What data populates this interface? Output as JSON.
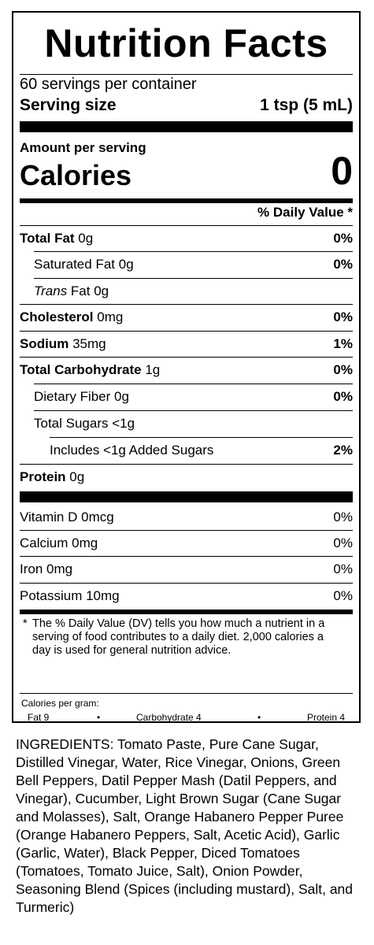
{
  "title": "Nutrition Facts",
  "servings_per_container": "60 servings per container",
  "serving_size_label": "Serving size",
  "serving_size_value": "1 tsp (5 mL)",
  "amount_per_serving": "Amount per serving",
  "calories_label": "Calories",
  "calories_value": "0",
  "daily_value_header": "% Daily Value *",
  "nutrients": [
    {
      "name": "Total Fat",
      "amount": "0g",
      "dv": "0%"
    },
    {
      "name": "Saturated Fat",
      "amount": "0g",
      "dv": "0%"
    },
    {
      "name_italic": "Trans",
      "name": "Fat",
      "amount": "0g",
      "dv": ""
    },
    {
      "name": "Cholesterol",
      "amount": "0mg",
      "dv": "0%"
    },
    {
      "name": "Sodium",
      "amount": "35mg",
      "dv": "1%"
    },
    {
      "name": "Total Carbohydrate",
      "amount": "1g",
      "dv": "0%"
    },
    {
      "name": "Dietary Fiber",
      "amount": "0g",
      "dv": "0%"
    },
    {
      "name": "Total Sugars",
      "amount": "<1g",
      "dv": ""
    },
    {
      "name": "Includes <1g Added Sugars",
      "amount": "",
      "dv": "2%"
    },
    {
      "name": "Protein",
      "amount": "0g",
      "dv": ""
    }
  ],
  "vitamins": [
    {
      "name": "Vitamin D",
      "amount": "0mcg",
      "dv": "0%"
    },
    {
      "name": "Calcium",
      "amount": "0mg",
      "dv": "0%"
    },
    {
      "name": "Iron",
      "amount": "0mg",
      "dv": "0%"
    },
    {
      "name": "Potassium",
      "amount": "10mg",
      "dv": "0%"
    }
  ],
  "footnote_star": "*",
  "footnote": "The % Daily Value (DV) tells you how much a nutrient in a serving of food contributes to a daily diet. 2,000 calories a day is used for general nutrition advice.",
  "calories_per_gram": {
    "label": "Calories per gram:",
    "fat": "Fat 9",
    "carbohydrate": "Carbohydrate 4",
    "protein": "Protein 4",
    "separator": "•"
  },
  "ingredients": "INGREDIENTS: Tomato Paste, Pure Cane Sugar, Distilled Vinegar, Water, Rice Vinegar, Onions, Green Bell Peppers, Datil Pepper Mash (Datil Peppers, and Vinegar), Cucumber, Light Brown Sugar (Cane Sugar and Molasses), Salt, Orange Habanero Pepper Puree (Orange Habanero Peppers, Salt, Acetic Acid), Garlic (Garlic, Water), Black Pepper, Diced Tomatoes (Tomatoes, Tomato Juice, Salt), Onion Powder, Seasoning Blend (Spices (including mustard), Salt, and Turmeric)"
}
